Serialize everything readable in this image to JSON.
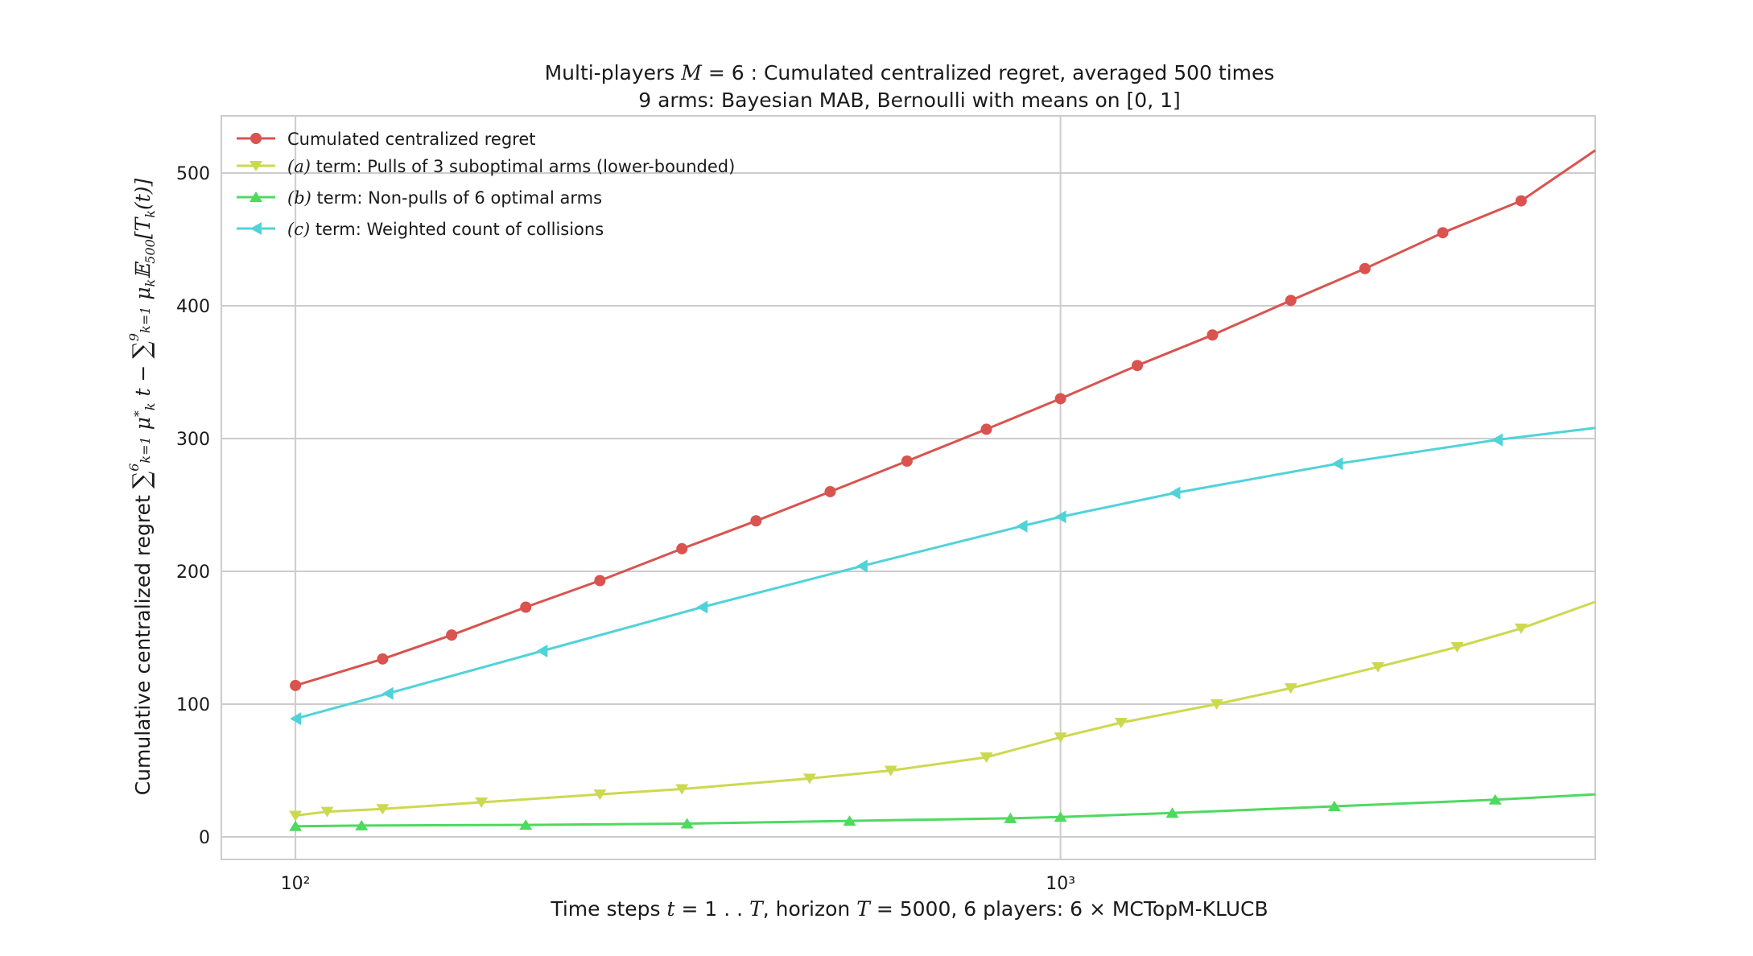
{
  "chart_data": {
    "type": "line",
    "title": "Multi-players M = 6 : Cumulated centralized regret, averaged 500 times",
    "subtitle": "9 arms: Bayesian MAB, Bernoulli with means on [0, 1]",
    "xlabel": "Time steps t = 1 . . T, horizon T = 5000, 6 players: 6 × MCTopM-KLUCB",
    "ylabel": "Cumulative centralized regret ∑_{k=1}^{6} μ*_k t − ∑_{k=1}^{9} μ_k 𝔼_500[T_k(t)]",
    "x_scale": "log",
    "xlim": [
      80,
      5000
    ],
    "ylim": [
      -17,
      543
    ],
    "yticks": [
      0,
      100,
      200,
      300,
      400,
      500
    ],
    "ytick_labels": [
      "0",
      "100",
      "200",
      "300",
      "400",
      "500"
    ],
    "xticks": [
      100,
      1000
    ],
    "xtick_labels": [
      "10²",
      "10³"
    ],
    "grid": true,
    "legend_position": "top-left",
    "series": [
      {
        "name": "Cumulated centralized regret",
        "color": "#d9534f",
        "marker": "circle",
        "x": [
          100,
          130,
          160,
          200,
          250,
          320,
          400,
          500,
          630,
          800,
          1000,
          1260,
          1580,
          2000,
          2500,
          3160,
          4000,
          5000
        ],
        "y": [
          114,
          134,
          152,
          173,
          193,
          217,
          238,
          260,
          283,
          307,
          330,
          355,
          378,
          404,
          428,
          455,
          479,
          517
        ]
      },
      {
        "name": "(a) term: Pulls of 3 suboptimal arms (lower-bounded)",
        "color": "#ccd94f",
        "marker": "triangle-down",
        "x": [
          100,
          110,
          130,
          175,
          250,
          320,
          470,
          600,
          800,
          1000,
          1200,
          1600,
          2000,
          2600,
          3300,
          4000,
          5000
        ],
        "y": [
          16,
          19,
          21,
          26,
          32,
          36,
          44,
          50,
          60,
          75,
          86,
          100,
          112,
          128,
          143,
          157,
          177
        ]
      },
      {
        "name": "(b) term: Non-pulls of 6 optimal arms",
        "color": "#4fd95f",
        "marker": "triangle-up",
        "x": [
          100,
          122,
          200,
          325,
          530,
          860,
          1000,
          1400,
          2280,
          3700,
          5000
        ],
        "y": [
          8,
          8.5,
          9,
          10,
          12,
          14,
          15,
          18,
          23,
          28,
          32
        ]
      },
      {
        "name": "(c) term: Weighted count of collisions",
        "color": "#4fd3d9",
        "marker": "triangle-left",
        "x": [
          100,
          132,
          210,
          340,
          550,
          890,
          1000,
          1410,
          2300,
          3720,
          5000
        ],
        "y": [
          89,
          108,
          140,
          173,
          204,
          234,
          241,
          259,
          281,
          299,
          308
        ]
      }
    ]
  }
}
